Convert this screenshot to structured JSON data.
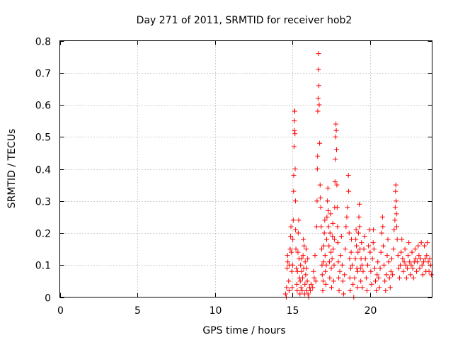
{
  "chart_data": {
    "type": "scatter",
    "title": "Day 271 of 2011, SRMTID for receiver hob2",
    "xlabel": "GPS time / hours",
    "ylabel": "SRMTID / TECUs",
    "xlim": [
      0,
      24
    ],
    "ylim": [
      0,
      0.8
    ],
    "xticks": [
      0,
      5,
      10,
      15,
      20
    ],
    "xtick_labels": [
      "0",
      "5",
      "10",
      "15",
      "20"
    ],
    "yticks": [
      0,
      0.1,
      0.2,
      0.3,
      0.4,
      0.5,
      0.6,
      0.7,
      0.8
    ],
    "ytick_labels": [
      "0",
      "0.1",
      "0.2",
      "0.3",
      "0.4",
      "0.5",
      "0.6",
      "0.7",
      "0.8"
    ],
    "grid": true,
    "marker": "+",
    "color": "#ff0000",
    "series": [
      {
        "name": "SRMTID",
        "points": [
          [
            14.55,
            0.01
          ],
          [
            14.6,
            0.0
          ],
          [
            14.62,
            0.03
          ],
          [
            14.65,
            0.09
          ],
          [
            14.68,
            0.13
          ],
          [
            14.7,
            0.11
          ],
          [
            14.75,
            0.05
          ],
          [
            14.78,
            0.02
          ],
          [
            14.8,
            0.1
          ],
          [
            14.85,
            0.15
          ],
          [
            14.88,
            0.19
          ],
          [
            14.9,
            0.22
          ],
          [
            14.92,
            0.14
          ],
          [
            14.95,
            0.08
          ],
          [
            14.98,
            0.03
          ],
          [
            15.0,
            0.1
          ],
          [
            15.02,
            0.18
          ],
          [
            15.05,
            0.24
          ],
          [
            15.07,
            0.33
          ],
          [
            15.08,
            0.38
          ],
          [
            15.1,
            0.47
          ],
          [
            15.11,
            0.52
          ],
          [
            15.12,
            0.55
          ],
          [
            15.13,
            0.58
          ],
          [
            15.15,
            0.58
          ],
          [
            15.16,
            0.51
          ],
          [
            15.17,
            0.4
          ],
          [
            15.19,
            0.3
          ],
          [
            15.2,
            0.21
          ],
          [
            15.22,
            0.15
          ],
          [
            15.25,
            0.09
          ],
          [
            15.28,
            0.04
          ],
          [
            15.3,
            0.02
          ],
          [
            15.32,
            0.08
          ],
          [
            15.35,
            0.14
          ],
          [
            15.37,
            0.2
          ],
          [
            15.4,
            0.24
          ],
          [
            15.42,
            0.12
          ],
          [
            15.45,
            0.06
          ],
          [
            15.48,
            0.01
          ],
          [
            15.5,
            0.05
          ],
          [
            15.52,
            0.1
          ],
          [
            15.55,
            0.03
          ],
          [
            15.58,
            0.08
          ],
          [
            15.6,
            0.12
          ],
          [
            15.62,
            0.02
          ],
          [
            15.65,
            0.06
          ],
          [
            15.68,
            0.13
          ],
          [
            15.7,
            0.18
          ],
          [
            15.72,
            0.09
          ],
          [
            15.75,
            0.16
          ],
          [
            15.78,
            0.01
          ],
          [
            15.8,
            0.04
          ],
          [
            15.82,
            0.11
          ],
          [
            15.85,
            0.07
          ],
          [
            15.88,
            0.15
          ],
          [
            15.9,
            0.02
          ],
          [
            15.92,
            0.09
          ],
          [
            15.95,
            0.05
          ],
          [
            15.98,
            0.12
          ],
          [
            16.0,
            0.01
          ],
          [
            16.05,
            0.0
          ],
          [
            16.1,
            0.03
          ],
          [
            16.15,
            0.02
          ],
          [
            16.2,
            0.04
          ],
          [
            16.3,
            0.03
          ],
          [
            16.35,
            0.08
          ],
          [
            16.4,
            0.06
          ],
          [
            16.45,
            0.13
          ],
          [
            16.5,
            0.05
          ],
          [
            16.55,
            0.22
          ],
          [
            16.58,
            0.3
          ],
          [
            16.6,
            0.4
          ],
          [
            16.62,
            0.44
          ],
          [
            16.63,
            0.58
          ],
          [
            16.65,
            0.62
          ],
          [
            16.67,
            0.71
          ],
          [
            16.68,
            0.76
          ],
          [
            16.7,
            0.66
          ],
          [
            16.72,
            0.6
          ],
          [
            16.75,
            0.48
          ],
          [
            16.78,
            0.35
          ],
          [
            16.8,
            0.31
          ],
          [
            16.82,
            0.28
          ],
          [
            16.85,
            0.22
          ],
          [
            16.88,
            0.15
          ],
          [
            16.9,
            0.1
          ],
          [
            16.92,
            0.07
          ],
          [
            16.95,
            0.02
          ],
          [
            16.98,
            0.05
          ],
          [
            17.0,
            0.11
          ],
          [
            17.02,
            0.16
          ],
          [
            17.05,
            0.2
          ],
          [
            17.08,
            0.24
          ],
          [
            17.1,
            0.13
          ],
          [
            17.12,
            0.08
          ],
          [
            17.15,
            0.04
          ],
          [
            17.18,
            0.1
          ],
          [
            17.2,
            0.18
          ],
          [
            17.22,
            0.25
          ],
          [
            17.25,
            0.3
          ],
          [
            17.28,
            0.34
          ],
          [
            17.3,
            0.27
          ],
          [
            17.32,
            0.22
          ],
          [
            17.35,
            0.16
          ],
          [
            17.38,
            0.11
          ],
          [
            17.4,
            0.06
          ],
          [
            17.42,
            0.2
          ],
          [
            17.45,
            0.26
          ],
          [
            17.48,
            0.14
          ],
          [
            17.5,
            0.09
          ],
          [
            17.52,
            0.03
          ],
          [
            17.55,
            0.12
          ],
          [
            17.58,
            0.19
          ],
          [
            17.6,
            0.23
          ],
          [
            17.62,
            0.15
          ],
          [
            17.65,
            0.05
          ],
          [
            17.68,
            0.1
          ],
          [
            17.7,
            0.18
          ],
          [
            17.72,
            0.28
          ],
          [
            17.74,
            0.36
          ],
          [
            17.76,
            0.43
          ],
          [
            17.78,
            0.5
          ],
          [
            17.8,
            0.54
          ],
          [
            17.82,
            0.52
          ],
          [
            17.84,
            0.46
          ],
          [
            17.86,
            0.35
          ],
          [
            17.88,
            0.28
          ],
          [
            17.9,
            0.22
          ],
          [
            17.92,
            0.17
          ],
          [
            17.95,
            0.11
          ],
          [
            17.98,
            0.06
          ],
          [
            18.0,
            0.02
          ],
          [
            18.05,
            0.08
          ],
          [
            18.1,
            0.13
          ],
          [
            18.15,
            0.19
          ],
          [
            18.2,
            0.1
          ],
          [
            18.25,
            0.05
          ],
          [
            18.3,
            0.01
          ],
          [
            18.35,
            0.07
          ],
          [
            18.4,
            0.15
          ],
          [
            18.45,
            0.22
          ],
          [
            18.5,
            0.25
          ],
          [
            18.55,
            0.28
          ],
          [
            18.6,
            0.38
          ],
          [
            18.62,
            0.33
          ],
          [
            18.65,
            0.2
          ],
          [
            18.68,
            0.12
          ],
          [
            18.7,
            0.06
          ],
          [
            18.72,
            0.02
          ],
          [
            18.75,
            0.09
          ],
          [
            18.78,
            0.14
          ],
          [
            18.8,
            0.18
          ],
          [
            18.85,
            0.1
          ],
          [
            18.9,
            0.04
          ],
          [
            18.95,
            0.0
          ],
          [
            19.0,
            0.06
          ],
          [
            19.05,
            0.12
          ],
          [
            19.08,
            0.18
          ],
          [
            19.1,
            0.21
          ],
          [
            19.12,
            0.16
          ],
          [
            19.15,
            0.09
          ],
          [
            19.18,
            0.03
          ],
          [
            19.2,
            0.08
          ],
          [
            19.22,
            0.14
          ],
          [
            19.25,
            0.2
          ],
          [
            19.28,
            0.25
          ],
          [
            19.3,
            0.29
          ],
          [
            19.32,
            0.22
          ],
          [
            19.35,
            0.15
          ],
          [
            19.38,
            0.09
          ],
          [
            19.4,
            0.05
          ],
          [
            19.42,
            0.12
          ],
          [
            19.45,
            0.17
          ],
          [
            19.48,
            0.1
          ],
          [
            19.5,
            0.03
          ],
          [
            19.55,
            0.08
          ],
          [
            19.6,
            0.15
          ],
          [
            19.65,
            0.19
          ],
          [
            19.7,
            0.12
          ],
          [
            19.75,
            0.06
          ],
          [
            19.8,
            0.02
          ],
          [
            19.85,
            0.1
          ],
          [
            19.9,
            0.16
          ],
          [
            19.95,
            0.21
          ],
          [
            20.0,
            0.14
          ],
          [
            20.05,
            0.08
          ],
          [
            20.1,
            0.04
          ],
          [
            20.15,
            0.12
          ],
          [
            20.2,
            0.17
          ],
          [
            20.22,
            0.21
          ],
          [
            20.25,
            0.15
          ],
          [
            20.3,
            0.09
          ],
          [
            20.35,
            0.05
          ],
          [
            20.4,
            0.02
          ],
          [
            20.45,
            0.07
          ],
          [
            20.5,
            0.11
          ],
          [
            20.55,
            0.06
          ],
          [
            20.6,
            0.03
          ],
          [
            20.65,
            0.09
          ],
          [
            20.7,
            0.14
          ],
          [
            20.75,
            0.2
          ],
          [
            20.8,
            0.25
          ],
          [
            20.82,
            0.22
          ],
          [
            20.85,
            0.16
          ],
          [
            20.9,
            0.1
          ],
          [
            20.95,
            0.05
          ],
          [
            21.0,
            0.02
          ],
          [
            21.05,
            0.07
          ],
          [
            21.1,
            0.13
          ],
          [
            21.15,
            0.18
          ],
          [
            21.2,
            0.11
          ],
          [
            21.25,
            0.06
          ],
          [
            21.3,
            0.03
          ],
          [
            21.35,
            0.08
          ],
          [
            21.4,
            0.12
          ],
          [
            21.45,
            0.07
          ],
          [
            21.5,
            0.15
          ],
          [
            21.55,
            0.21
          ],
          [
            21.6,
            0.24
          ],
          [
            21.62,
            0.28
          ],
          [
            21.64,
            0.33
          ],
          [
            21.66,
            0.35
          ],
          [
            21.68,
            0.3
          ],
          [
            21.7,
            0.26
          ],
          [
            21.72,
            0.22
          ],
          [
            21.75,
            0.18
          ],
          [
            21.8,
            0.13
          ],
          [
            21.85,
            0.09
          ],
          [
            21.9,
            0.06
          ],
          [
            21.95,
            0.1
          ],
          [
            22.0,
            0.14
          ],
          [
            22.05,
            0.18
          ],
          [
            22.1,
            0.12
          ],
          [
            22.15,
            0.08
          ],
          [
            22.2,
            0.11
          ],
          [
            22.25,
            0.15
          ],
          [
            22.3,
            0.1
          ],
          [
            22.35,
            0.06
          ],
          [
            22.4,
            0.09
          ],
          [
            22.45,
            0.13
          ],
          [
            22.5,
            0.17
          ],
          [
            22.55,
            0.11
          ],
          [
            22.6,
            0.07
          ],
          [
            22.65,
            0.1
          ],
          [
            22.7,
            0.14
          ],
          [
            22.75,
            0.09
          ],
          [
            22.8,
            0.06
          ],
          [
            22.85,
            0.11
          ],
          [
            22.9,
            0.15
          ],
          [
            22.95,
            0.12
          ],
          [
            23.0,
            0.08
          ],
          [
            23.05,
            0.11
          ],
          [
            23.1,
            0.16
          ],
          [
            23.15,
            0.13
          ],
          [
            23.2,
            0.09
          ],
          [
            23.25,
            0.12
          ],
          [
            23.3,
            0.17
          ],
          [
            23.35,
            0.1
          ],
          [
            23.4,
            0.07
          ],
          [
            23.45,
            0.11
          ],
          [
            23.5,
            0.16
          ],
          [
            23.55,
            0.12
          ],
          [
            23.6,
            0.08
          ],
          [
            23.65,
            0.13
          ],
          [
            23.7,
            0.17
          ],
          [
            23.75,
            0.11
          ],
          [
            23.8,
            0.08
          ],
          [
            23.85,
            0.12
          ],
          [
            23.9,
            0.1
          ],
          [
            23.95,
            0.07
          ]
        ]
      }
    ]
  }
}
